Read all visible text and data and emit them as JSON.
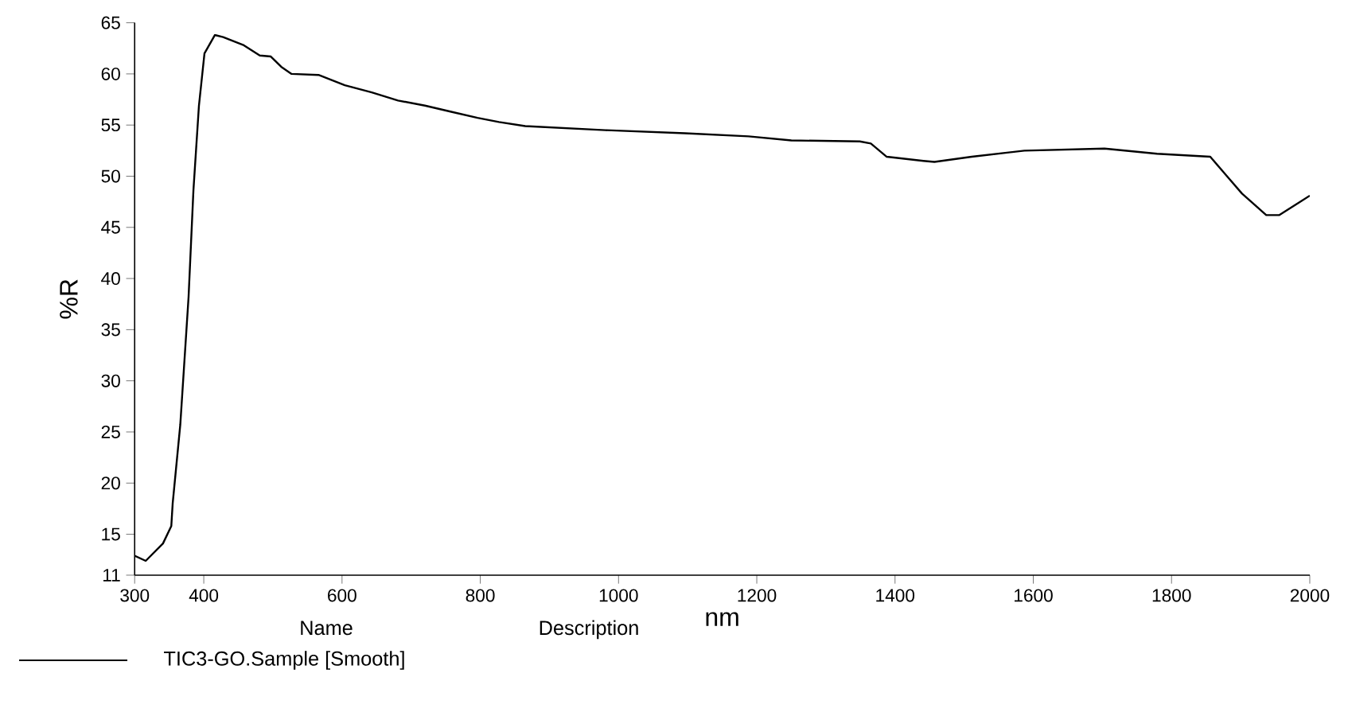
{
  "chart_data": {
    "type": "line",
    "xlabel": "nm",
    "ylabel": "%R",
    "legend_title": "Name",
    "annotations": [
      "Description"
    ],
    "legend": "bottom",
    "xlim": [
      300,
      2000
    ],
    "xticks": [
      300,
      400,
      600,
      800,
      1000,
      1200,
      1400,
      1600,
      1800,
      2000
    ],
    "ylim": [
      11,
      65
    ],
    "yticks": [
      11,
      15,
      20,
      25,
      30,
      35,
      40,
      45,
      50,
      55,
      60,
      65
    ],
    "series": [
      {
        "name": "TIC3-GO.Sample [Smooth]",
        "color": "#000000",
        "line_style": "solid",
        "x": [
          300,
          316,
          341,
          353,
          355,
          366,
          378,
          385,
          393,
          401,
          416,
          428,
          458,
          481,
          497,
          512,
          527,
          566,
          604,
          643,
          681,
          720,
          758,
          796,
          827,
          865,
          981,
          1096,
          1188,
          1250,
          1349,
          1365,
          1388,
          1441,
          1457,
          1511,
          1587,
          1703,
          1779,
          1856,
          1879,
          1902,
          1937,
          1956,
          2000
        ],
        "values": [
          12.9,
          12.4,
          14.1,
          15.8,
          18.0,
          25.7,
          38.2,
          48.6,
          56.9,
          62.0,
          63.8,
          63.6,
          62.8,
          61.8,
          61.7,
          60.7,
          60.0,
          59.9,
          58.9,
          58.2,
          57.4,
          56.9,
          56.3,
          55.7,
          55.3,
          54.9,
          54.5,
          54.2,
          53.9,
          53.5,
          53.4,
          53.2,
          51.9,
          51.5,
          51.4,
          51.9,
          52.5,
          52.7,
          52.2,
          51.9,
          50.1,
          48.3,
          46.2,
          46.2,
          48.1
        ]
      }
    ]
  }
}
